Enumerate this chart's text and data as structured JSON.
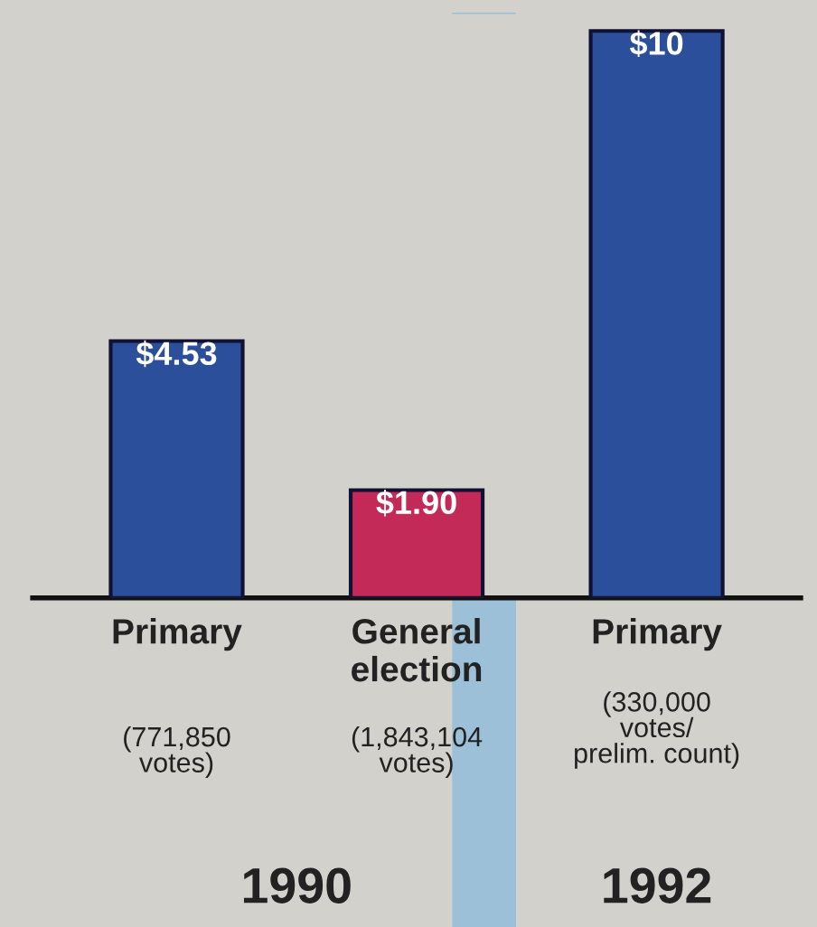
{
  "chart_data": {
    "type": "bar",
    "categories": [
      "Primary",
      "General\nelection",
      "Primary"
    ],
    "values": [
      4.53,
      1.9,
      10
    ],
    "colors": [
      "#2c4f9c",
      "#c42a58",
      "#2c4f9c"
    ],
    "value_labels": [
      "$4.53",
      "$1.90",
      "$10"
    ],
    "annotations": [
      "(771,850\nvotes)",
      "(1,843,104\nvotes)",
      "(330,000\nvotes/\nprelim. count)",
      "1990",
      "1992"
    ],
    "grid": false,
    "legend": false
  }
}
